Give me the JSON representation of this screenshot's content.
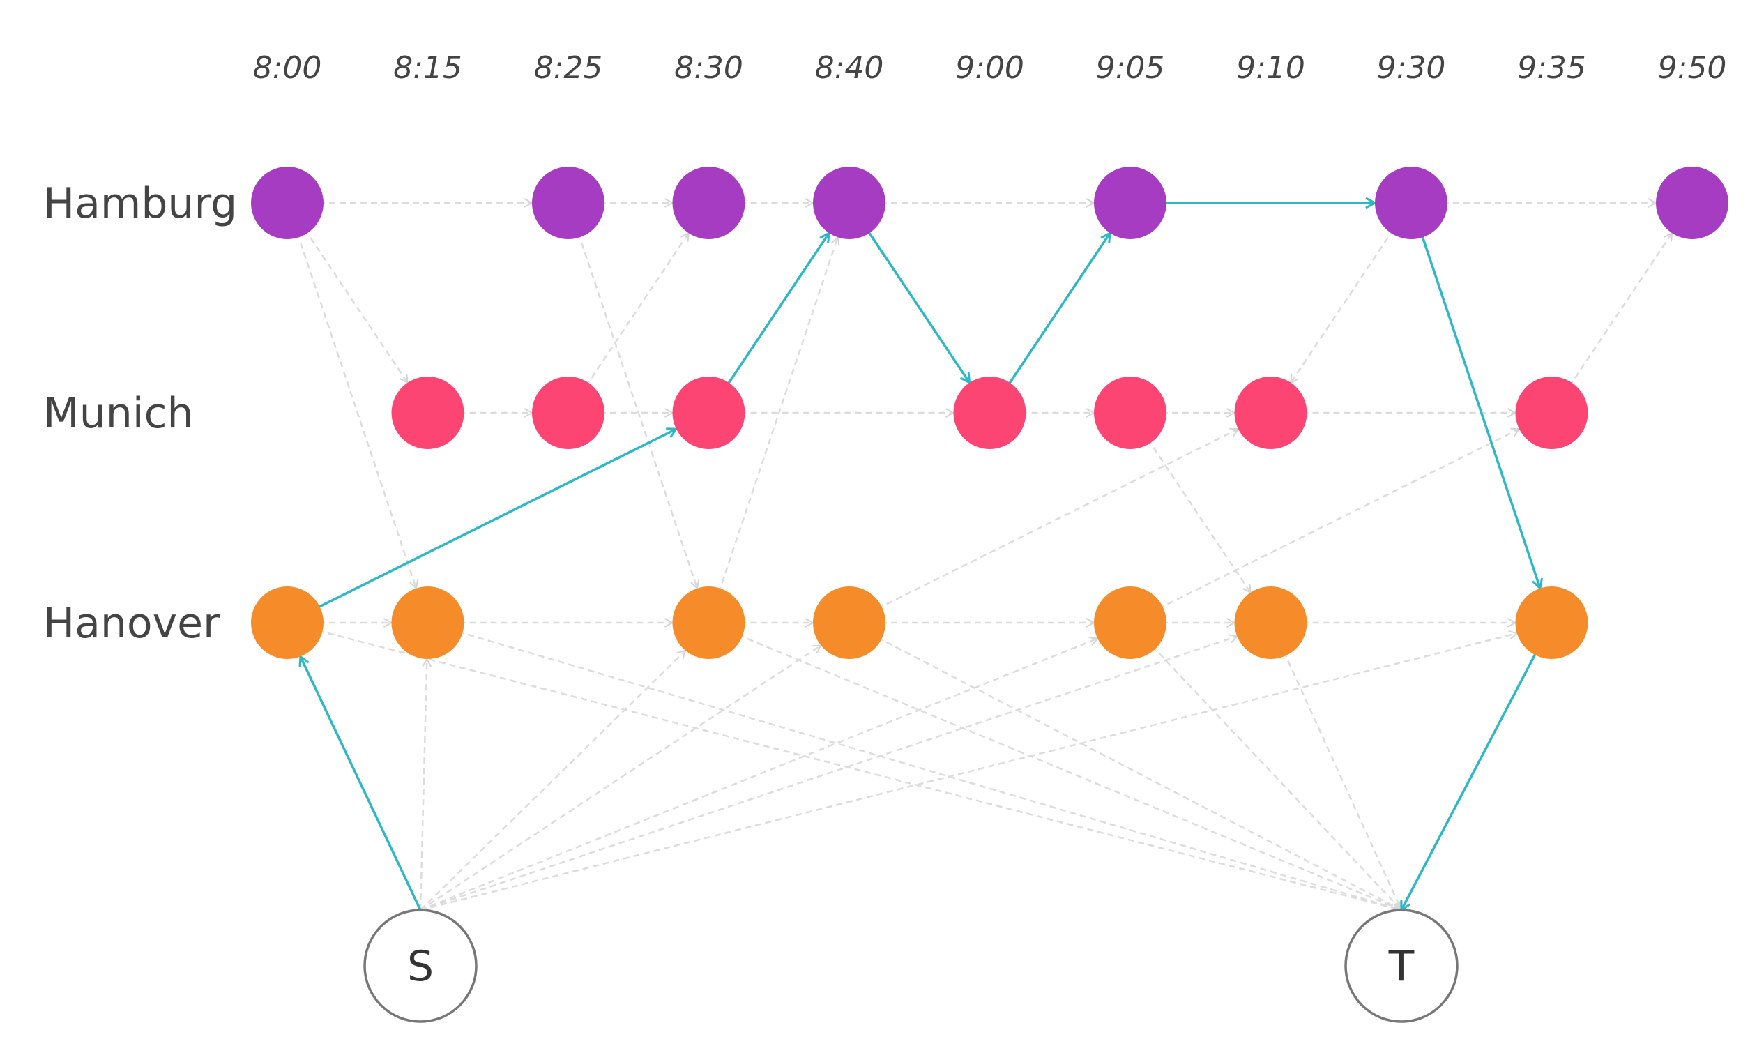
{
  "times": [
    "8:00",
    "8:15",
    "8:25",
    "8:30",
    "8:40",
    "9:00",
    "9:05",
    "9:10",
    "9:30",
    "9:35",
    "9:50"
  ],
  "cities": [
    {
      "name": "Hamburg",
      "color": "#a63cc1",
      "nodes": [
        0,
        2,
        3,
        4,
        6,
        8,
        10
      ]
    },
    {
      "name": "Munich",
      "color": "#fc4572",
      "nodes": [
        1,
        2,
        3,
        5,
        6,
        7,
        9
      ]
    },
    {
      "name": "Hanover",
      "color": "#f68c29",
      "nodes": [
        0,
        1,
        3,
        4,
        6,
        7,
        9
      ]
    }
  ],
  "terminals": [
    {
      "id": "S",
      "label": "S"
    },
    {
      "id": "T",
      "label": "T"
    }
  ],
  "colors": {
    "path": "#2db8c5",
    "edge": "#dcdcdc",
    "terminal_stroke": "#777777",
    "text": "#444444"
  },
  "edges": [
    {
      "from": [
        "Hamburg",
        0
      ],
      "to": [
        "Hamburg",
        2
      ]
    },
    {
      "from": [
        "Hamburg",
        2
      ],
      "to": [
        "Hamburg",
        3
      ]
    },
    {
      "from": [
        "Hamburg",
        3
      ],
      "to": [
        "Hamburg",
        4
      ]
    },
    {
      "from": [
        "Hamburg",
        4
      ],
      "to": [
        "Hamburg",
        6
      ]
    },
    {
      "from": [
        "Hamburg",
        8
      ],
      "to": [
        "Hamburg",
        10
      ]
    },
    {
      "from": [
        "Munich",
        1
      ],
      "to": [
        "Munich",
        2
      ]
    },
    {
      "from": [
        "Munich",
        2
      ],
      "to": [
        "Munich",
        3
      ]
    },
    {
      "from": [
        "Munich",
        3
      ],
      "to": [
        "Munich",
        5
      ]
    },
    {
      "from": [
        "Munich",
        5
      ],
      "to": [
        "Munich",
        6
      ]
    },
    {
      "from": [
        "Munich",
        6
      ],
      "to": [
        "Munich",
        7
      ]
    },
    {
      "from": [
        "Munich",
        7
      ],
      "to": [
        "Munich",
        9
      ]
    },
    {
      "from": [
        "Hanover",
        0
      ],
      "to": [
        "Hanover",
        1
      ]
    },
    {
      "from": [
        "Hanover",
        1
      ],
      "to": [
        "Hanover",
        3
      ]
    },
    {
      "from": [
        "Hanover",
        3
      ],
      "to": [
        "Hanover",
        4
      ]
    },
    {
      "from": [
        "Hanover",
        4
      ],
      "to": [
        "Hanover",
        6
      ]
    },
    {
      "from": [
        "Hanover",
        6
      ],
      "to": [
        "Hanover",
        7
      ]
    },
    {
      "from": [
        "Hanover",
        7
      ],
      "to": [
        "Hanover",
        9
      ]
    },
    {
      "from": [
        "Hamburg",
        0
      ],
      "to": [
        "Munich",
        1
      ]
    },
    {
      "from": [
        "Hamburg",
        0
      ],
      "to": [
        "Hanover",
        1
      ]
    },
    {
      "from": [
        "Munich",
        2
      ],
      "to": [
        "Hamburg",
        3
      ]
    },
    {
      "from": [
        "Hamburg",
        2
      ],
      "to": [
        "Hanover",
        3
      ]
    },
    {
      "from": [
        "Hanover",
        3
      ],
      "to": [
        "Hamburg",
        4
      ]
    },
    {
      "from": [
        "Hamburg",
        8
      ],
      "to": [
        "Munich",
        7
      ]
    },
    {
      "from": [
        "Munich",
        9
      ],
      "to": [
        "Hamburg",
        10
      ]
    },
    {
      "from": [
        "Hanover",
        4
      ],
      "to": [
        "Munich",
        7
      ]
    },
    {
      "from": [
        "Hanover",
        6
      ],
      "to": [
        "Munich",
        9
      ]
    },
    {
      "from": [
        "Munich",
        6
      ],
      "to": [
        "Hanover",
        7
      ]
    },
    {
      "from": [
        "S"
      ],
      "to": [
        "Hanover",
        1
      ]
    },
    {
      "from": [
        "S"
      ],
      "to": [
        "Hanover",
        3
      ]
    },
    {
      "from": [
        "S"
      ],
      "to": [
        "Hanover",
        4
      ]
    },
    {
      "from": [
        "S"
      ],
      "to": [
        "Hanover",
        6
      ]
    },
    {
      "from": [
        "S"
      ],
      "to": [
        "Hanover",
        7
      ]
    },
    {
      "from": [
        "S"
      ],
      "to": [
        "Hanover",
        9
      ]
    },
    {
      "from": [
        "Hanover",
        0
      ],
      "to": [
        "T"
      ]
    },
    {
      "from": [
        "Hanover",
        1
      ],
      "to": [
        "T"
      ]
    },
    {
      "from": [
        "Hanover",
        3
      ],
      "to": [
        "T"
      ]
    },
    {
      "from": [
        "Hanover",
        4
      ],
      "to": [
        "T"
      ]
    },
    {
      "from": [
        "Hanover",
        6
      ],
      "to": [
        "T"
      ]
    },
    {
      "from": [
        "Hanover",
        7
      ],
      "to": [
        "T"
      ]
    }
  ],
  "path": [
    [
      "S"
    ],
    [
      "Hanover",
      0
    ],
    [
      "Munich",
      3
    ],
    [
      "Hamburg",
      4
    ],
    [
      "Munich",
      5
    ],
    [
      "Hamburg",
      6
    ],
    [
      "Hamburg",
      8
    ],
    [
      "Hanover",
      9
    ],
    [
      "T"
    ]
  ]
}
